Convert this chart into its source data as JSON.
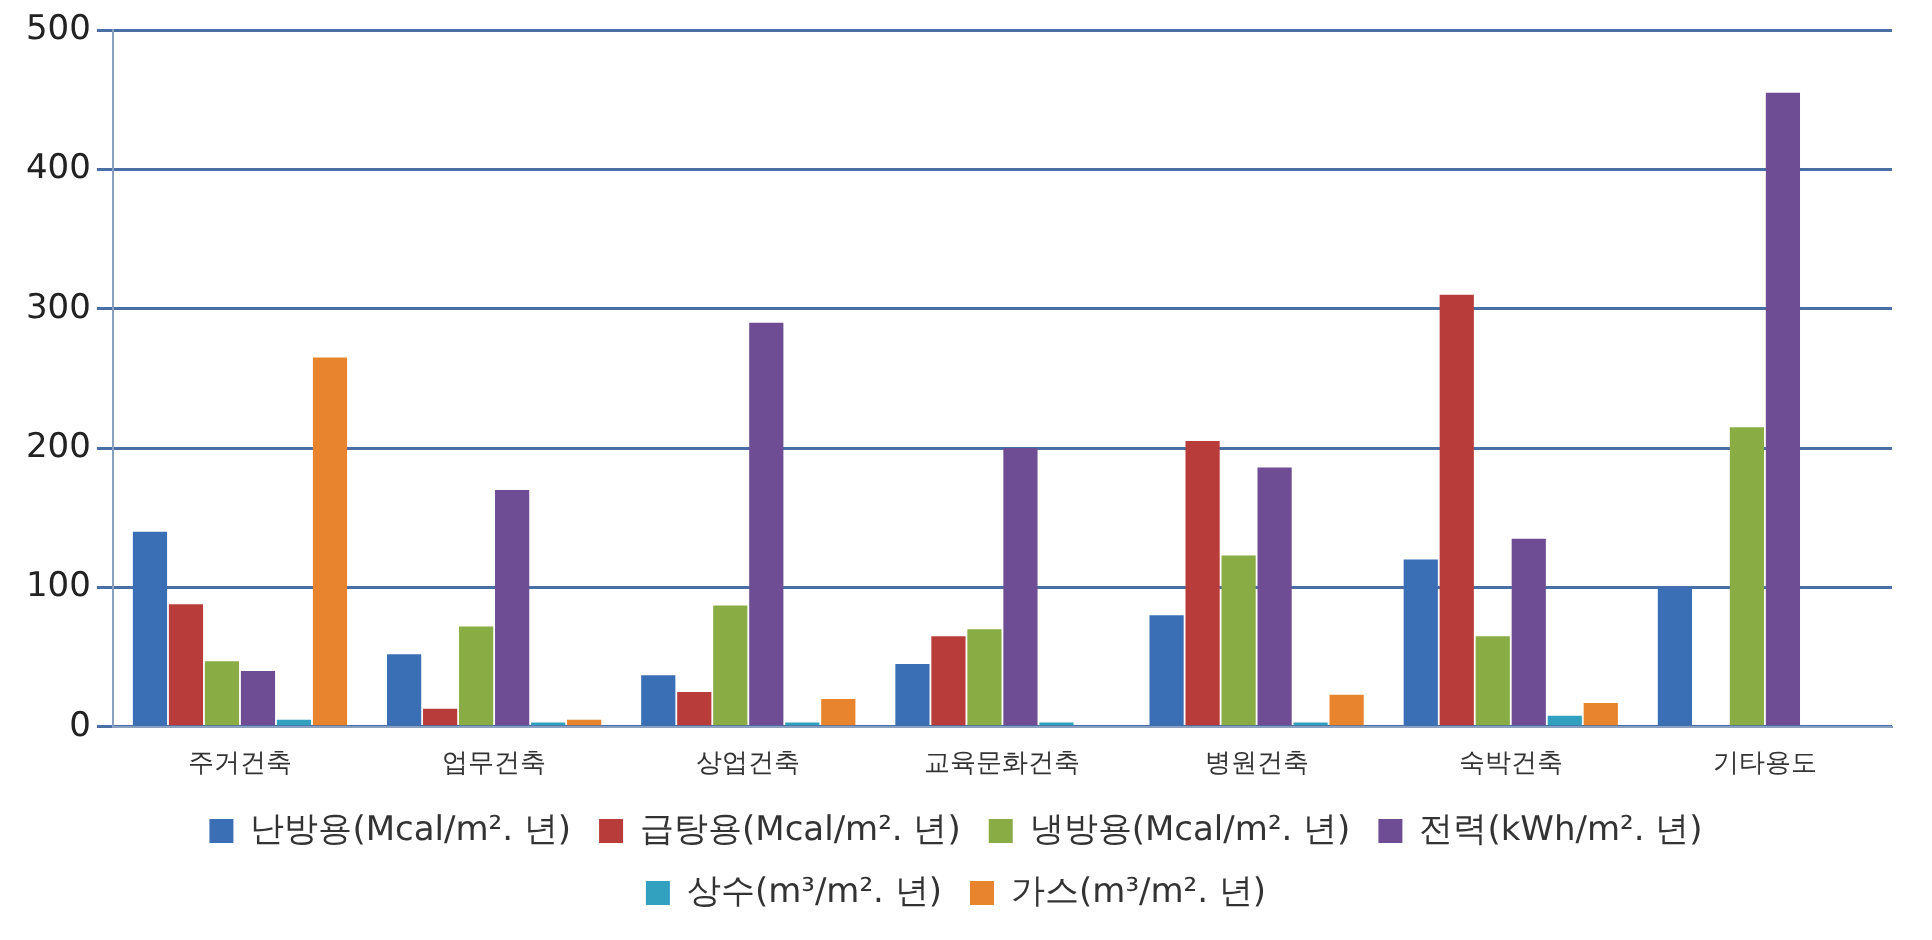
{
  "chart_data": {
    "type": "bar",
    "categories": [
      "주거건축",
      "업무건축",
      "상업건축",
      "교육문화건축",
      "병원건축",
      "숙박건축",
      "기타용도"
    ],
    "series": [
      {
        "name": "난방용(Mcal/m². 년)",
        "color": "#3a6fb5",
        "values": [
          140,
          52,
          37,
          45,
          80,
          120,
          100
        ]
      },
      {
        "name": "급탕용(Mcal/m². 년)",
        "color": "#b83c3a",
        "values": [
          88,
          13,
          25,
          65,
          205,
          310,
          null
        ]
      },
      {
        "name": "냉방용(Mcal/m². 년)",
        "color": "#8aac45",
        "values": [
          47,
          72,
          87,
          70,
          123,
          65,
          215
        ]
      },
      {
        "name": "전력(kWh/m². 년)",
        "color": "#6e4d94",
        "values": [
          40,
          170,
          290,
          200,
          186,
          135,
          455
        ]
      },
      {
        "name": "상수(m³/m². 년)",
        "color": "#32a0bf",
        "values": [
          5,
          3,
          3,
          3,
          3,
          8,
          null
        ]
      },
      {
        "name": "가스(m³/m². 년)",
        "color": "#e8832e",
        "values": [
          265,
          5,
          20,
          null,
          23,
          17,
          null
        ]
      }
    ],
    "ylim": [
      0,
      500
    ],
    "yticks": [
      0,
      100,
      200,
      300,
      400,
      500
    ],
    "grid": "y",
    "legend": "bottom"
  }
}
